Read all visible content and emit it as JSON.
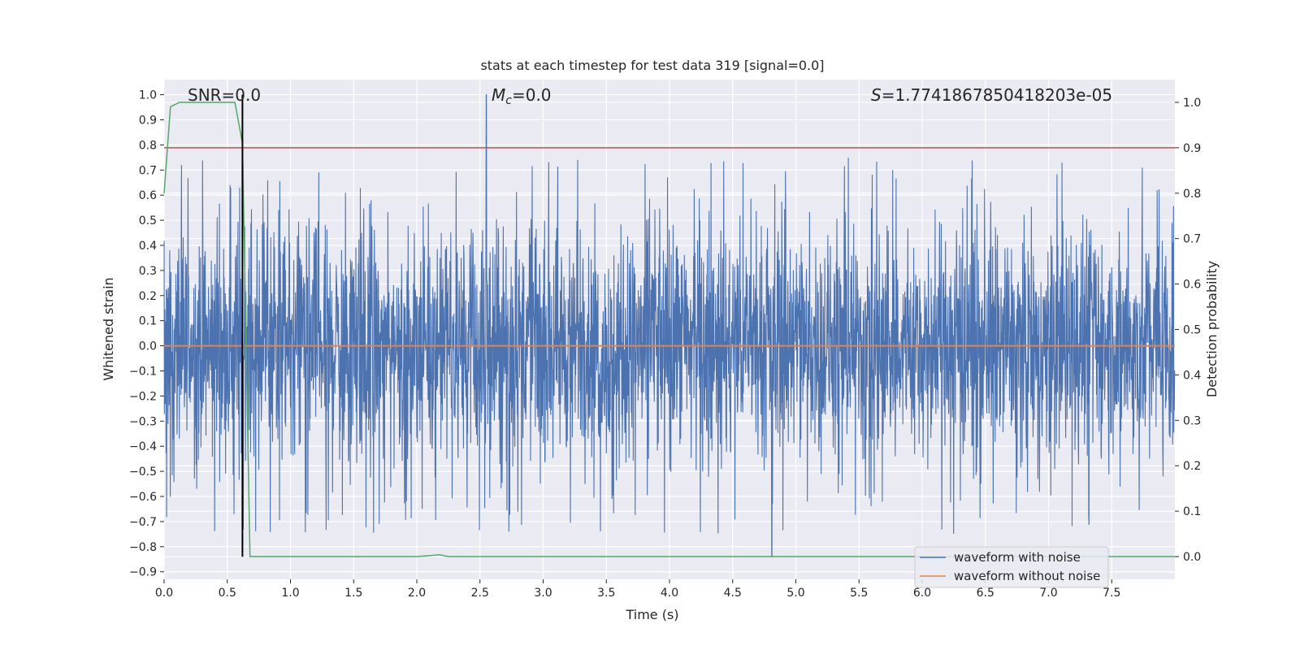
{
  "chart_data": {
    "type": "line",
    "title": "stats at each timestep for test data 319 [signal=0.0]",
    "xlabel": "Time (s)",
    "ylabel": "Whitened strain",
    "y2label": "Detection probability",
    "xlim": [
      0.0,
      8.0
    ],
    "ylim": [
      -0.93,
      1.06
    ],
    "y2lim": [
      -0.05,
      1.05
    ],
    "xticks": [
      "0.0",
      "0.5",
      "1.0",
      "1.5",
      "2.0",
      "2.5",
      "3.0",
      "3.5",
      "4.0",
      "4.5",
      "5.0",
      "5.5",
      "6.0",
      "6.5",
      "7.0",
      "7.5"
    ],
    "yticks": [
      "1.0",
      "0.9",
      "0.8",
      "0.7",
      "0.6",
      "0.5",
      "0.4",
      "0.3",
      "0.2",
      "0.1",
      "0.0",
      "−0.1",
      "−0.2",
      "−0.3",
      "−0.4",
      "−0.5",
      "−0.6",
      "−0.7",
      "−0.8",
      "−0.9"
    ],
    "y2ticks": [
      "1.0",
      "0.9",
      "0.8",
      "0.7",
      "0.6",
      "0.5",
      "0.4",
      "0.3",
      "0.2",
      "0.1",
      "0.0"
    ],
    "annotations": {
      "snr": "SNR=0.0",
      "mc_symbol": "M",
      "mc_sub": "c",
      "mc_value": "=0.0",
      "s_symbol": "S",
      "s_value": "=1.7741867850418203e-05"
    },
    "series": [
      {
        "name": "waveform with noise",
        "color": "#4c72b0",
        "axis": "left",
        "description": "whitened noisy strain, roughly ±0.3 core with spikes to ±0.8",
        "envelope_min": -0.84,
        "envelope_max": 1.0
      },
      {
        "name": "waveform without noise",
        "color": "#dd8452",
        "axis": "left",
        "x": [
          0.0,
          8.0
        ],
        "y": [
          0.0,
          0.0
        ]
      },
      {
        "name": "detection probability",
        "color": "#55a868",
        "axis": "right",
        "x": [
          0.0,
          0.05,
          0.12,
          0.2,
          0.56,
          0.62,
          0.68,
          0.7,
          1.0,
          2.0,
          2.1,
          2.18,
          2.25,
          3.0,
          8.0
        ],
        "y": [
          0.8,
          0.99,
          1.0,
          1.0,
          1.0,
          0.91,
          0.0,
          0.0,
          0.0,
          0.0,
          0.002,
          0.004,
          0.0,
          0.0,
          0.0
        ]
      },
      {
        "name": "threshold",
        "color": "#c44e52",
        "axis": "right",
        "x": [
          0.0,
          8.0
        ],
        "y": [
          0.9,
          0.9
        ]
      },
      {
        "name": "detection time",
        "color": "#000000",
        "axis": "left",
        "x": [
          0.62,
          0.62
        ],
        "y": [
          -0.84,
          1.0
        ]
      }
    ],
    "legend": {
      "placement": "lower right",
      "entries": [
        "waveform with noise",
        "waveform without noise"
      ]
    }
  }
}
